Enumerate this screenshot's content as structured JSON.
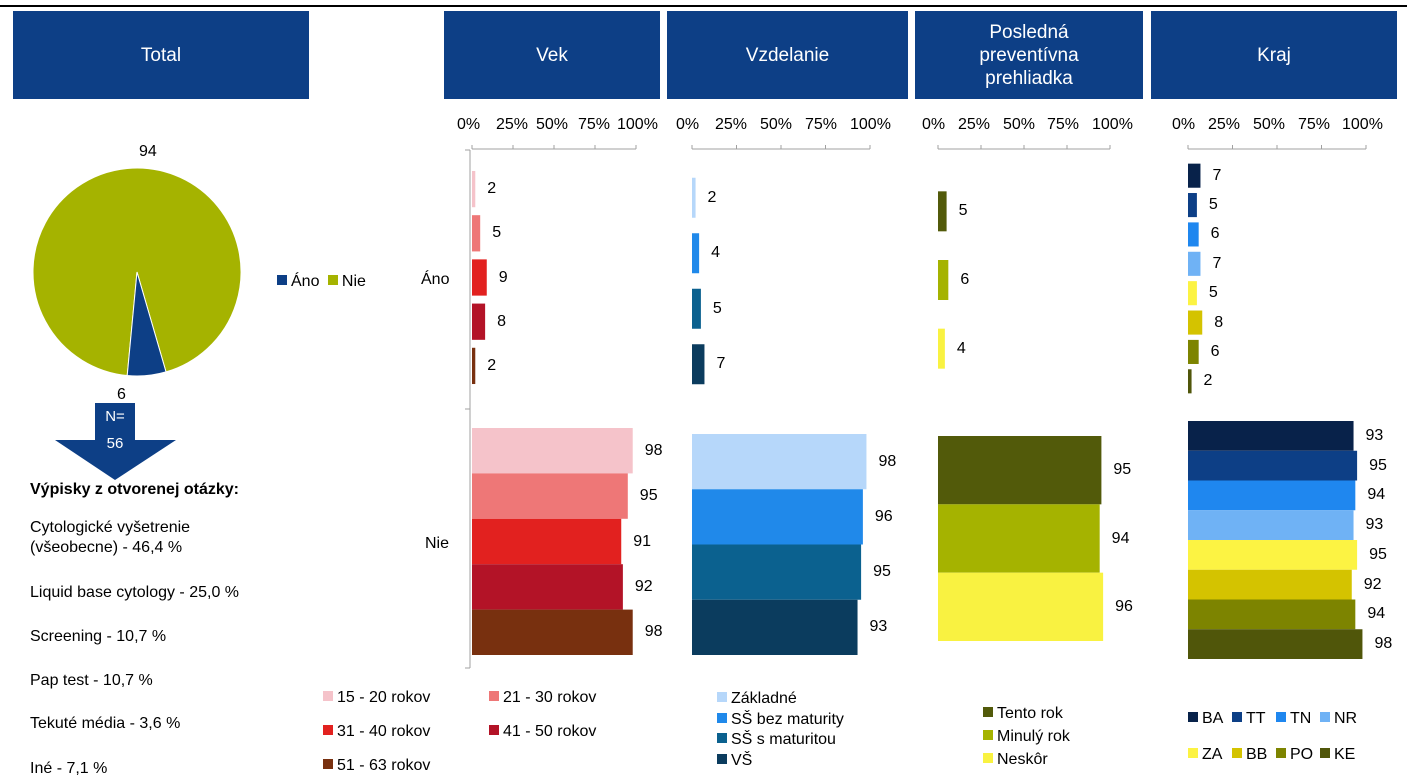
{
  "headers": {
    "total": "Total",
    "vek": "Vek",
    "vzdelanie": "Vzdelanie",
    "prehliadka": "Posledná\npreventívna\nprehliadka",
    "kraj": "Kraj"
  },
  "pie": {
    "value_nie": "94",
    "value_ano": "6",
    "legend_ano": "Áno",
    "legend_nie": "Nie",
    "color_ano": "#0d3f86",
    "color_nie": "#a5b300"
  },
  "arrow": {
    "label_n": "N=",
    "value_n": "56"
  },
  "notes": {
    "heading": "Výpisky z otvorenej otázky:",
    "items": [
      "Cytologické vyšetrenie (všeobecne) - 46,4 %",
      "Liquid base cytology - 25,0 %",
      "Screening - 10,7 %",
      "Pap test - 10,7 %",
      "Tekuté média - 3,6 %",
      "Iné - 7,1 %"
    ]
  },
  "category_labels": {
    "ano": "Áno",
    "nie": "Nie"
  },
  "chart_data": [
    {
      "type": "pie",
      "categories": [
        "Áno",
        "Nie"
      ],
      "values": [
        6,
        94
      ],
      "colors": [
        "#0d3f86",
        "#a5b300"
      ]
    },
    {
      "type": "bar",
      "orientation": "horizontal",
      "axis_ticks": [
        "0%",
        "25%",
        "50%",
        "75%",
        "100%"
      ],
      "xlim": [
        0,
        100
      ],
      "categories": [
        "Áno",
        "Nie"
      ],
      "series": [
        {
          "name": "15 - 20 rokov",
          "values": [
            2,
            98
          ],
          "color": "#f5c3ca"
        },
        {
          "name": "21 - 30 rokov",
          "values": [
            5,
            95
          ],
          "color": "#ee7777"
        },
        {
          "name": "31 - 40 rokov",
          "values": [
            9,
            91
          ],
          "color": "#e2211f"
        },
        {
          "name": "41 - 50 rokov",
          "values": [
            8,
            92
          ],
          "color": "#b31327"
        },
        {
          "name": "51 - 63 rokov",
          "values": [
            2,
            98
          ],
          "color": "#78300f"
        }
      ]
    },
    {
      "type": "bar",
      "orientation": "horizontal",
      "axis_ticks": [
        "0%",
        "25%",
        "50%",
        "75%",
        "100%"
      ],
      "xlim": [
        0,
        100
      ],
      "categories": [
        "Áno",
        "Nie"
      ],
      "series": [
        {
          "name": "Základné",
          "values": [
            2,
            98
          ],
          "color": "#b6d7fa"
        },
        {
          "name": "SŠ bez maturity",
          "values": [
            4,
            96
          ],
          "color": "#2089ea"
        },
        {
          "name": "SŠ s maturitou",
          "values": [
            5,
            95
          ],
          "color": "#0b618f"
        },
        {
          "name": "VŠ",
          "values": [
            7,
            93
          ],
          "color": "#0b3c5e"
        }
      ]
    },
    {
      "type": "bar",
      "orientation": "horizontal",
      "axis_ticks": [
        "0%",
        "25%",
        "50%",
        "75%",
        "100%"
      ],
      "xlim": [
        0,
        100
      ],
      "categories": [
        "Áno",
        "Nie"
      ],
      "series": [
        {
          "name": "Tento rok",
          "values": [
            5,
            95
          ],
          "color": "#525a0a"
        },
        {
          "name": "Minulý rok",
          "values": [
            6,
            94
          ],
          "color": "#a5b300"
        },
        {
          "name": "Neskôr",
          "values": [
            4,
            96
          ],
          "color": "#f9f241"
        }
      ]
    },
    {
      "type": "bar",
      "orientation": "horizontal",
      "axis_ticks": [
        "0%",
        "25%",
        "50%",
        "75%",
        "100%"
      ],
      "xlim": [
        0,
        100
      ],
      "categories": [
        "Áno",
        "Nie"
      ],
      "series": [
        {
          "name": "BA",
          "values": [
            7,
            93
          ],
          "color": "#08224a"
        },
        {
          "name": "TT",
          "values": [
            5,
            95
          ],
          "color": "#0d3f86"
        },
        {
          "name": "TN",
          "values": [
            6,
            94
          ],
          "color": "#1f87ef"
        },
        {
          "name": "NR",
          "values": [
            7,
            93
          ],
          "color": "#6fb2f5"
        },
        {
          "name": "ZA",
          "values": [
            5,
            95
          ],
          "color": "#fcf343"
        },
        {
          "name": "BB",
          "values": [
            8,
            92
          ],
          "color": "#d4c300"
        },
        {
          "name": "PO",
          "values": [
            6,
            94
          ],
          "color": "#7d8400"
        },
        {
          "name": "KE",
          "values": [
            2,
            98
          ],
          "color": "#50560a"
        }
      ]
    }
  ]
}
